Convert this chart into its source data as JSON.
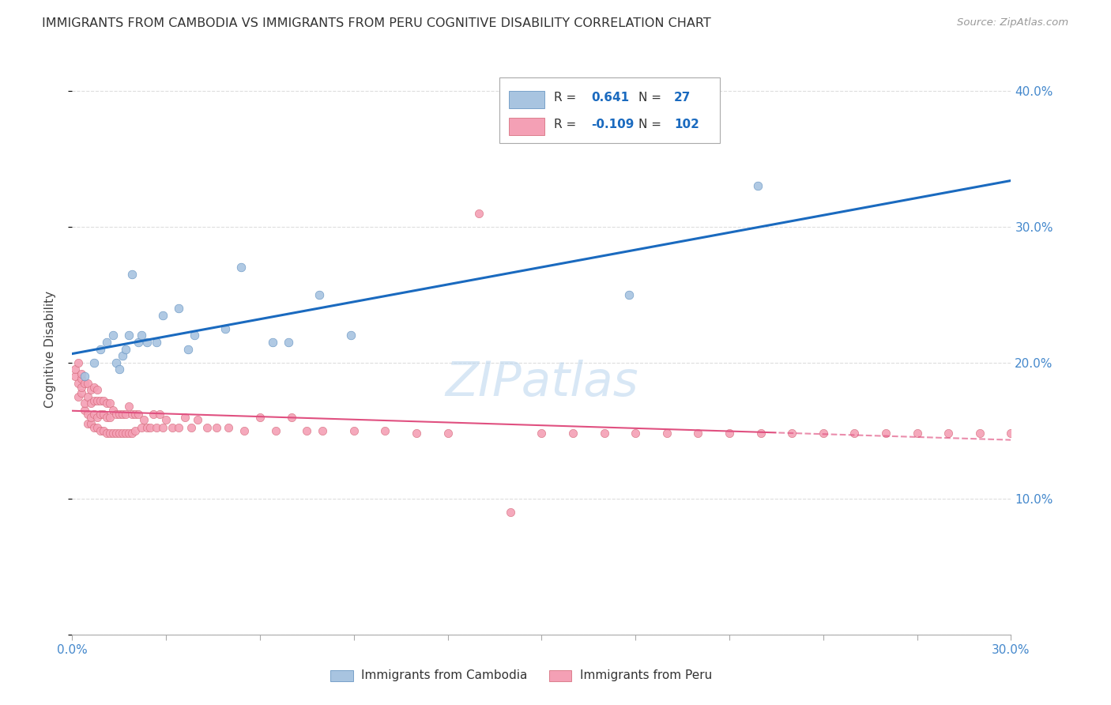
{
  "title": "IMMIGRANTS FROM CAMBODIA VS IMMIGRANTS FROM PERU COGNITIVE DISABILITY CORRELATION CHART",
  "source": "Source: ZipAtlas.com",
  "ylabel": "Cognitive Disability",
  "xlim": [
    0.0,
    0.3
  ],
  "ylim": [
    0.0,
    0.42
  ],
  "cambodia_R": 0.641,
  "cambodia_N": 27,
  "peru_R": -0.109,
  "peru_N": 102,
  "cambodia_color": "#a8c4e0",
  "cambodia_line_color": "#1a6abf",
  "peru_color": "#f4a0b5",
  "peru_line_color": "#e05080",
  "background_color": "#ffffff",
  "grid_color": "#dddddd",
  "cambodia_x": [
    0.004,
    0.007,
    0.009,
    0.011,
    0.013,
    0.014,
    0.015,
    0.016,
    0.017,
    0.018,
    0.019,
    0.021,
    0.022,
    0.024,
    0.027,
    0.029,
    0.034,
    0.037,
    0.039,
    0.049,
    0.054,
    0.064,
    0.069,
    0.079,
    0.089,
    0.178,
    0.219
  ],
  "cambodia_y": [
    0.19,
    0.2,
    0.21,
    0.215,
    0.22,
    0.2,
    0.195,
    0.205,
    0.21,
    0.22,
    0.265,
    0.215,
    0.22,
    0.215,
    0.215,
    0.235,
    0.24,
    0.21,
    0.22,
    0.225,
    0.27,
    0.215,
    0.215,
    0.25,
    0.22,
    0.25,
    0.33
  ],
  "peru_x": [
    0.001,
    0.001,
    0.002,
    0.002,
    0.002,
    0.003,
    0.003,
    0.003,
    0.003,
    0.004,
    0.004,
    0.004,
    0.005,
    0.005,
    0.005,
    0.005,
    0.006,
    0.006,
    0.006,
    0.006,
    0.007,
    0.007,
    0.007,
    0.007,
    0.008,
    0.008,
    0.008,
    0.008,
    0.009,
    0.009,
    0.009,
    0.01,
    0.01,
    0.01,
    0.011,
    0.011,
    0.011,
    0.012,
    0.012,
    0.012,
    0.013,
    0.013,
    0.014,
    0.014,
    0.015,
    0.015,
    0.016,
    0.016,
    0.017,
    0.017,
    0.018,
    0.018,
    0.019,
    0.019,
    0.02,
    0.02,
    0.021,
    0.022,
    0.023,
    0.024,
    0.025,
    0.026,
    0.027,
    0.028,
    0.029,
    0.03,
    0.032,
    0.034,
    0.036,
    0.038,
    0.04,
    0.043,
    0.046,
    0.05,
    0.055,
    0.06,
    0.065,
    0.07,
    0.075,
    0.08,
    0.09,
    0.1,
    0.11,
    0.12,
    0.13,
    0.14,
    0.15,
    0.16,
    0.17,
    0.18,
    0.19,
    0.2,
    0.21,
    0.22,
    0.23,
    0.24,
    0.25,
    0.26,
    0.27,
    0.28,
    0.29,
    0.3
  ],
  "peru_y": [
    0.19,
    0.195,
    0.185,
    0.2,
    0.175,
    0.178,
    0.182,
    0.188,
    0.192,
    0.165,
    0.17,
    0.185,
    0.155,
    0.162,
    0.175,
    0.185,
    0.155,
    0.16,
    0.17,
    0.18,
    0.152,
    0.162,
    0.172,
    0.182,
    0.152,
    0.16,
    0.172,
    0.18,
    0.15,
    0.162,
    0.172,
    0.15,
    0.162,
    0.172,
    0.148,
    0.16,
    0.17,
    0.148,
    0.16,
    0.17,
    0.148,
    0.165,
    0.148,
    0.162,
    0.148,
    0.162,
    0.148,
    0.162,
    0.148,
    0.162,
    0.148,
    0.168,
    0.148,
    0.162,
    0.15,
    0.162,
    0.162,
    0.152,
    0.158,
    0.152,
    0.152,
    0.162,
    0.152,
    0.162,
    0.152,
    0.158,
    0.152,
    0.152,
    0.16,
    0.152,
    0.158,
    0.152,
    0.152,
    0.152,
    0.15,
    0.16,
    0.15,
    0.16,
    0.15,
    0.15,
    0.15,
    0.15,
    0.148,
    0.148,
    0.31,
    0.09,
    0.148,
    0.148,
    0.148,
    0.148,
    0.148,
    0.148,
    0.148,
    0.148,
    0.148,
    0.148,
    0.148,
    0.148,
    0.148,
    0.148,
    0.148,
    0.148
  ]
}
